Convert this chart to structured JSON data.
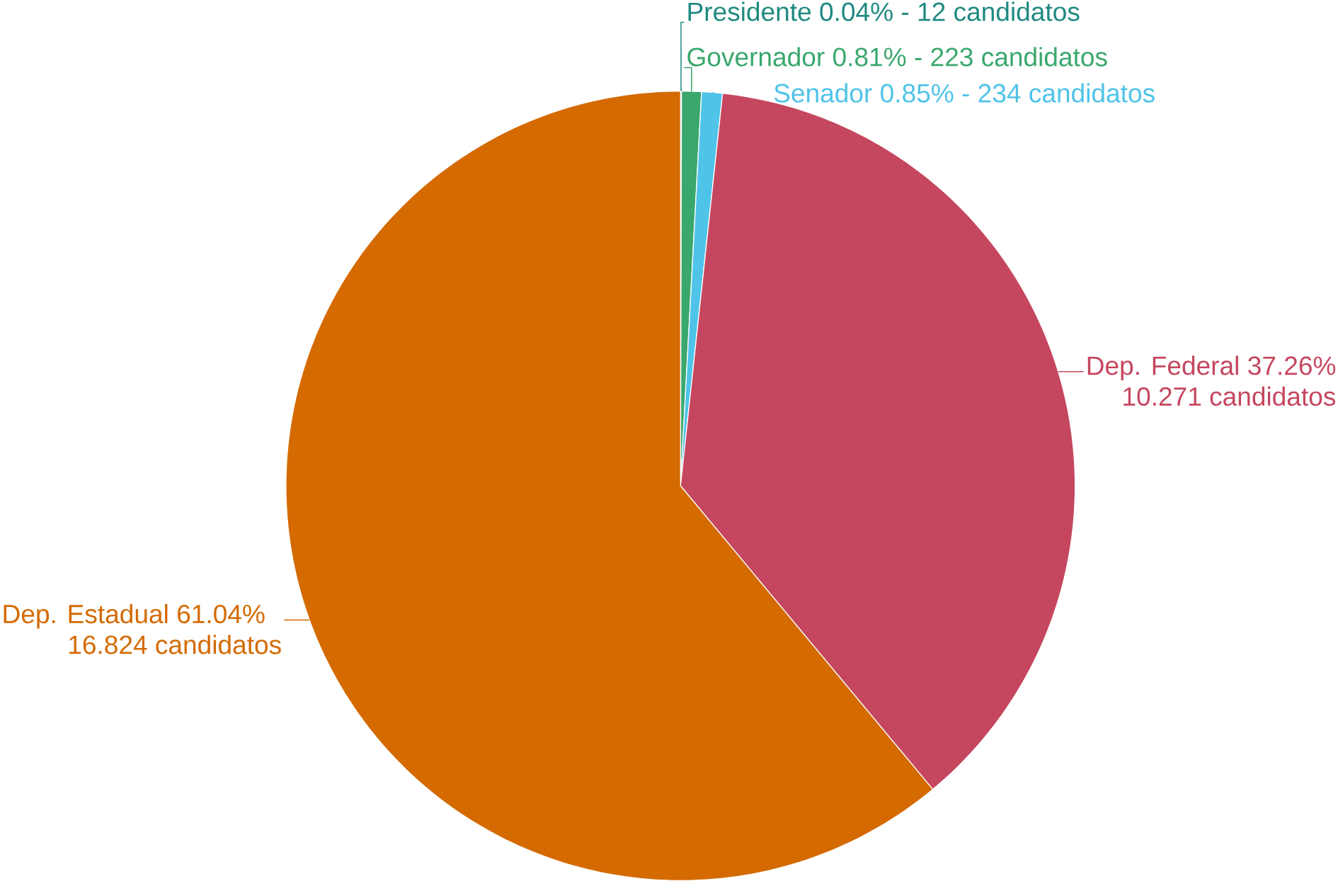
{
  "chart_data": {
    "type": "pie",
    "categories": [
      "Presidente",
      "Governador",
      "Senador",
      "Dep. Federal",
      "Dep. Estadual"
    ],
    "values": [
      0.04,
      0.81,
      0.85,
      37.26,
      61.04
    ],
    "value_labels": [
      "0.04%",
      "0.81%",
      "0.85%",
      "37.26%",
      "61.04%"
    ],
    "annotations": [
      "- 12 candidatos",
      "- 223 candidatos",
      "- 234 candidatos",
      "10.271 candidatos",
      "16.824 candidatos"
    ],
    "colors": [
      "#1f8a80",
      "#3aa76d",
      "#4fc3e8",
      "#c5475f",
      "#d46a00"
    ]
  }
}
